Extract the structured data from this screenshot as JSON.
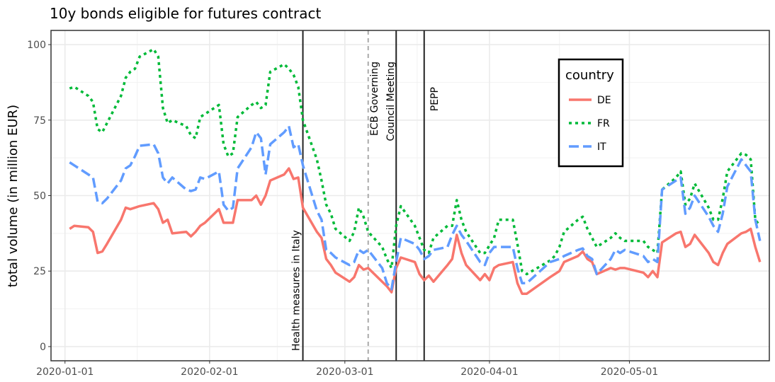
{
  "chart_data": {
    "type": "line",
    "title": "10y bonds eligible for futures contract",
    "y_label": "total volume (in million EUR)",
    "legend_title": "country",
    "legend": "top-right",
    "grid": true,
    "xlim": [
      "2019-12-29",
      "2020-05-31"
    ],
    "xticks": [
      "2020-01-01",
      "2020-02-01",
      "2020-03-01",
      "2020-04-01",
      "2020-05-01"
    ],
    "ylim": [
      -4.7,
      104.7
    ],
    "yticks": [
      0,
      25,
      50,
      75,
      100
    ],
    "x": [
      "2020-01-02",
      "2020-01-03",
      "2020-01-06",
      "2020-01-07",
      "2020-01-08",
      "2020-01-09",
      "2020-01-10",
      "2020-01-13",
      "2020-01-14",
      "2020-01-15",
      "2020-01-16",
      "2020-01-17",
      "2020-01-20",
      "2020-01-21",
      "2020-01-22",
      "2020-01-23",
      "2020-01-24",
      "2020-01-27",
      "2020-01-28",
      "2020-01-29",
      "2020-01-30",
      "2020-01-31",
      "2020-02-03",
      "2020-02-04",
      "2020-02-05",
      "2020-02-06",
      "2020-02-07",
      "2020-02-10",
      "2020-02-11",
      "2020-02-12",
      "2020-02-13",
      "2020-02-14",
      "2020-02-17",
      "2020-02-18",
      "2020-02-19",
      "2020-02-20",
      "2020-02-21",
      "2020-02-24",
      "2020-02-25",
      "2020-02-26",
      "2020-02-27",
      "2020-02-28",
      "2020-03-02",
      "2020-03-03",
      "2020-03-04",
      "2020-03-05",
      "2020-03-06",
      "2020-03-09",
      "2020-03-10",
      "2020-03-11",
      "2020-03-12",
      "2020-03-13",
      "2020-03-16",
      "2020-03-17",
      "2020-03-18",
      "2020-03-19",
      "2020-03-20",
      "2020-03-23",
      "2020-03-24",
      "2020-03-25",
      "2020-03-26",
      "2020-03-27",
      "2020-03-30",
      "2020-03-31",
      "2020-04-01",
      "2020-04-02",
      "2020-04-03",
      "2020-04-06",
      "2020-04-07",
      "2020-04-08",
      "2020-04-09",
      "2020-04-14",
      "2020-04-15",
      "2020-04-16",
      "2020-04-17",
      "2020-04-20",
      "2020-04-21",
      "2020-04-22",
      "2020-04-23",
      "2020-04-24",
      "2020-04-27",
      "2020-04-28",
      "2020-04-29",
      "2020-04-30",
      "2020-05-04",
      "2020-05-05",
      "2020-05-06",
      "2020-05-07",
      "2020-05-08",
      "2020-05-11",
      "2020-05-12",
      "2020-05-13",
      "2020-05-14",
      "2020-05-15",
      "2020-05-18",
      "2020-05-19",
      "2020-05-20",
      "2020-05-21",
      "2020-05-22",
      "2020-05-25",
      "2020-05-26",
      "2020-05-27",
      "2020-05-28",
      "2020-05-29"
    ],
    "series": [
      {
        "name": "DE",
        "color": "#F8766D",
        "dash": "solid",
        "values": [
          39,
          40,
          39.5,
          38,
          31,
          31.5,
          34,
          42,
          46,
          45.5,
          46,
          46.5,
          47.5,
          45.5,
          41,
          42,
          37.5,
          38,
          36.5,
          38,
          40,
          41,
          45.5,
          41,
          41,
          41,
          48.5,
          48.5,
          50,
          47,
          50,
          55,
          57,
          59,
          55.5,
          56,
          46,
          38,
          36,
          29,
          27,
          24.5,
          21.5,
          23,
          27,
          25.5,
          26,
          21.5,
          20,
          18,
          26,
          29.5,
          28,
          24,
          22,
          23.5,
          21.5,
          27,
          29,
          37,
          31,
          27,
          22,
          24,
          22,
          26,
          27,
          28,
          21,
          17.5,
          17.5,
          23,
          24,
          25,
          28,
          30,
          31.5,
          29,
          28,
          24,
          26,
          25.5,
          26,
          26,
          24.5,
          23,
          25,
          23,
          34.5,
          37.5,
          38,
          33,
          34,
          37,
          31,
          28,
          27,
          31,
          34,
          37.5,
          38,
          39,
          33,
          28
        ]
      },
      {
        "name": "FR",
        "color": "#00BA38",
        "dash": "dotted",
        "values": [
          85.5,
          86,
          83,
          81,
          72,
          71,
          74,
          83,
          89,
          91,
          92,
          96,
          98.5,
          96,
          79,
          74,
          75,
          73,
          70,
          69,
          76,
          77,
          80,
          67,
          63,
          64,
          76,
          80,
          81,
          79,
          80,
          91,
          93.5,
          92,
          90,
          86,
          75,
          62,
          55,
          47,
          44,
          39,
          35,
          38,
          46,
          43,
          38,
          33,
          29,
          26,
          40,
          46.5,
          40,
          36,
          32,
          31,
          36,
          40,
          40,
          48.5,
          42,
          38,
          31,
          31,
          33.5,
          36,
          42,
          42,
          34,
          25,
          24,
          28.5,
          30,
          33,
          38,
          42,
          43,
          39,
          36,
          33,
          36,
          37.5,
          36,
          35,
          35,
          33,
          32,
          31,
          52,
          56,
          58,
          47,
          49,
          54,
          46,
          42,
          42,
          49,
          58,
          64,
          63.5,
          62,
          42,
          40
        ]
      },
      {
        "name": "IT",
        "color": "#619CFF",
        "dash": "dashed",
        "values": [
          61,
          60,
          57,
          56,
          48,
          47.5,
          49,
          55,
          59,
          60,
          63,
          66.5,
          67,
          64,
          56,
          54,
          56,
          52,
          51.5,
          52,
          56,
          55.5,
          58,
          47,
          45,
          46,
          59,
          66,
          71,
          69,
          57,
          67,
          71,
          73,
          66,
          67,
          60,
          45,
          42,
          32,
          31,
          29.5,
          27,
          28,
          32,
          31,
          32,
          26,
          21,
          19,
          28,
          36,
          34,
          32,
          29,
          30,
          32,
          33,
          37,
          40,
          37,
          35,
          28,
          27,
          31,
          33,
          33,
          33,
          26,
          21,
          21,
          28,
          28.5,
          29,
          30,
          32,
          32.5,
          30,
          29,
          24,
          29,
          32,
          31,
          32,
          30,
          28,
          29,
          28,
          52,
          55,
          56,
          44,
          46,
          50,
          43,
          40,
          38,
          44,
          53,
          62,
          60,
          58,
          42,
          35
        ]
      }
    ],
    "annotations": [
      {
        "x": "2020-02-21",
        "style": "solid",
        "label": "Health measures in Italy"
      },
      {
        "x": "2020-03-06",
        "style": "dashed"
      },
      {
        "x": "2020-03-12",
        "style": "solid",
        "label": [
          "ECB Governing",
          "Council Meeting"
        ]
      },
      {
        "x": "2020-03-18",
        "style": "solid",
        "label": "PEPP"
      }
    ]
  }
}
